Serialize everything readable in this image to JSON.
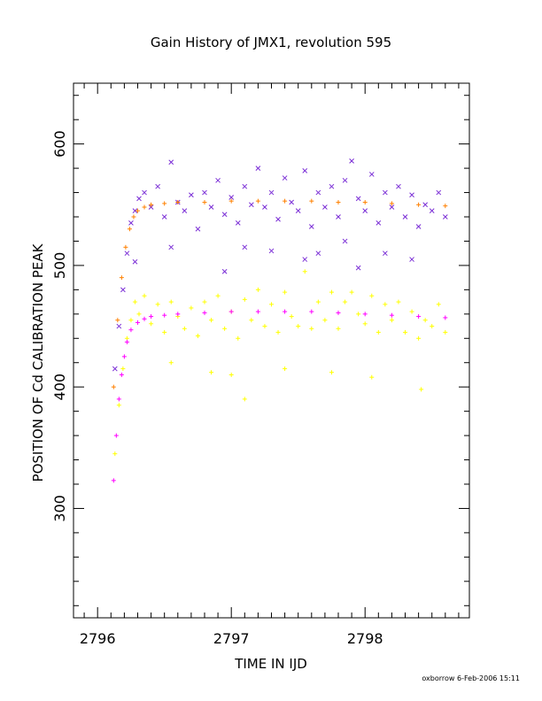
{
  "chart_data": {
    "type": "scatter",
    "title": "Gain History of JMX1, revolution 595",
    "xlabel": "TIME IN IJD",
    "ylabel": "POSITION OF Cd CALIBRATION PEAK",
    "xlim": [
      2795.82,
      2798.78
    ],
    "ylim": [
      210,
      650
    ],
    "xticks": [
      2796,
      2797,
      2798
    ],
    "yticks": [
      300,
      400,
      500,
      600
    ],
    "grid": false,
    "series": [
      {
        "marker": "x",
        "color": "#7b2fd6",
        "x": [
          2796.13,
          2796.16,
          2796.19,
          2796.22,
          2796.25,
          2796.28,
          2796.31,
          2796.35,
          2796.4,
          2796.45,
          2796.5,
          2796.55,
          2796.6,
          2796.65,
          2796.7,
          2796.75,
          2796.8,
          2796.85,
          2796.9,
          2796.95,
          2797.0,
          2797.05,
          2797.1,
          2797.15,
          2797.2,
          2797.25,
          2797.3,
          2797.35,
          2797.4,
          2797.45,
          2797.5,
          2797.55,
          2797.6,
          2797.65,
          2797.7,
          2797.75,
          2797.8,
          2797.85,
          2797.9,
          2797.95,
          2798.0,
          2798.05,
          2798.1,
          2798.15,
          2798.2,
          2798.25,
          2798.3,
          2798.35,
          2798.4,
          2798.45,
          2798.5,
          2798.55,
          2798.6
        ],
        "y": [
          415,
          450,
          480,
          510,
          535,
          545,
          555,
          560,
          548,
          565,
          540,
          585,
          552,
          545,
          558,
          530,
          560,
          548,
          570,
          542,
          556,
          535,
          565,
          550,
          580,
          548,
          560,
          538,
          572,
          552,
          545,
          578,
          532,
          560,
          548,
          565,
          540,
          570,
          586,
          555,
          545,
          575,
          535,
          560,
          548,
          565,
          540,
          558,
          532,
          550,
          545,
          560,
          540
        ]
      },
      {
        "marker": "x",
        "color": "#7b2fd6",
        "x": [
          2796.28,
          2796.55,
          2796.95,
          2797.1,
          2797.3,
          2797.55,
          2797.65,
          2797.85,
          2797.95,
          2798.15,
          2798.35
        ],
        "y": [
          503,
          515,
          495,
          515,
          512,
          505,
          510,
          520,
          498,
          510,
          505
        ]
      },
      {
        "marker": "+",
        "color": "#ffff00",
        "x": [
          2796.13,
          2796.16,
          2796.19,
          2796.22,
          2796.25,
          2796.28,
          2796.31,
          2796.35,
          2796.4,
          2796.45,
          2796.5,
          2796.55,
          2796.6,
          2796.65,
          2796.7,
          2796.75,
          2796.8,
          2796.85,
          2796.9,
          2796.95,
          2797.0,
          2797.05,
          2797.1,
          2797.15,
          2797.2,
          2797.25,
          2797.3,
          2797.35,
          2797.4,
          2797.45,
          2797.5,
          2797.55,
          2797.6,
          2797.65,
          2797.7,
          2797.75,
          2797.8,
          2797.85,
          2797.9,
          2797.95,
          2798.0,
          2798.05,
          2798.1,
          2798.15,
          2798.2,
          2798.25,
          2798.3,
          2798.35,
          2798.4,
          2798.45,
          2798.5,
          2798.55,
          2798.6
        ],
        "y": [
          345,
          385,
          415,
          440,
          455,
          470,
          460,
          475,
          452,
          468,
          445,
          470,
          458,
          448,
          465,
          442,
          470,
          455,
          475,
          448,
          462,
          440,
          472,
          455,
          480,
          450,
          468,
          445,
          478,
          458,
          450,
          495,
          448,
          470,
          455,
          478,
          448,
          470,
          478,
          460,
          452,
          475,
          445,
          468,
          455,
          470,
          445,
          462,
          440,
          455,
          450,
          468,
          445
        ]
      },
      {
        "marker": "+",
        "color": "#ffff00",
        "x": [
          2797.1,
          2797.0,
          2796.85,
          2797.75,
          2798.05,
          2798.42,
          2796.55,
          2797.4
        ],
        "y": [
          390,
          410,
          412,
          412,
          408,
          398,
          420,
          415
        ]
      },
      {
        "marker": "+",
        "color": "#ff8000",
        "x": [
          2796.12,
          2796.15,
          2796.18,
          2796.21,
          2796.24,
          2796.27,
          2796.3,
          2796.35,
          2796.4,
          2796.5,
          2796.6,
          2796.8,
          2797.0,
          2797.2,
          2797.4,
          2797.6,
          2797.8,
          2798.0,
          2798.2,
          2798.4,
          2798.6
        ],
        "y": [
          400,
          455,
          490,
          515,
          530,
          540,
          545,
          548,
          550,
          551,
          552,
          552,
          553,
          553,
          553,
          553,
          552,
          552,
          551,
          550,
          549
        ]
      },
      {
        "marker": "+",
        "color": "#ff00ff",
        "x": [
          2796.12,
          2796.14,
          2796.16,
          2796.18,
          2796.2,
          2796.22,
          2796.25,
          2796.3,
          2796.35,
          2796.4,
          2796.5,
          2796.6,
          2796.8,
          2797.0,
          2797.2,
          2797.4,
          2797.6,
          2797.8,
          2798.0,
          2798.2,
          2798.4,
          2798.6
        ],
        "y": [
          323,
          360,
          390,
          410,
          425,
          437,
          447,
          453,
          456,
          458,
          459,
          460,
          461,
          462,
          462,
          462,
          462,
          461,
          460,
          459,
          458,
          457
        ]
      }
    ]
  },
  "footer": "oxborrow   6-Feb-2006 15:11"
}
